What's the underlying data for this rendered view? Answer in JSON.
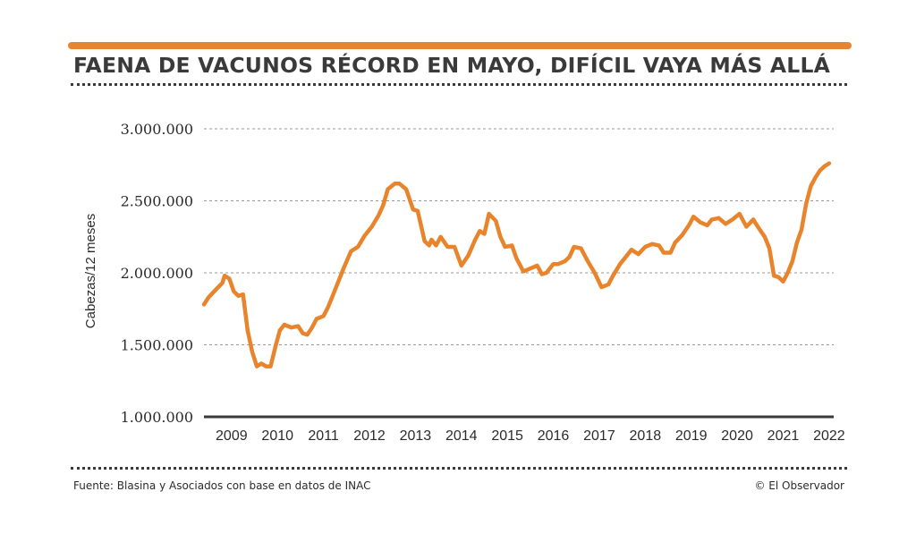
{
  "header": {
    "title": "FAENA DE VACUNOS RÉCORD EN MAYO, DIFÍCIL VAYA MÁS ALLÁ",
    "accent_color": "#e8842b"
  },
  "footer": {
    "source": "Fuente: Blasina y Asociados con base en datos de INAC",
    "credit": "© El Observador"
  },
  "chart_data": {
    "type": "line",
    "title": "FAENA DE VACUNOS RÉCORD EN MAYO, DIFÍCIL VAYA MÁS ALLÁ",
    "xlabel": "",
    "ylabel": "Cabezas/12 meses",
    "x_range": [
      2008.9,
      2022.6
    ],
    "ylim": [
      1000000,
      3000000
    ],
    "y_ticks": [
      1000000,
      1500000,
      2000000,
      2500000,
      3000000
    ],
    "y_tick_labels": [
      "1.000.000",
      "1.500.000",
      "2.000.000",
      "2.500.000",
      "3.000.000"
    ],
    "x_ticks": [
      2009.5,
      2010.5,
      2011.5,
      2012.5,
      2013.5,
      2014.5,
      2015.5,
      2016.5,
      2017.5,
      2018.5,
      2019.5,
      2020.5,
      2021.5,
      2022.5
    ],
    "x_tick_labels": [
      "2009",
      "2010",
      "2011",
      "2012",
      "2013",
      "2014",
      "2015",
      "2016",
      "2017",
      "2018",
      "2019",
      "2020",
      "2021",
      "2022"
    ],
    "grid": true,
    "line_color": "#e8842b",
    "series": [
      {
        "name": "",
        "x": [
          2008.9,
          2009.0,
          2009.15,
          2009.3,
          2009.35,
          2009.45,
          2009.55,
          2009.65,
          2009.75,
          2009.85,
          2009.95,
          2010.05,
          2010.15,
          2010.25,
          2010.35,
          2010.45,
          2010.55,
          2010.65,
          2010.8,
          2010.95,
          2011.05,
          2011.15,
          2011.25,
          2011.35,
          2011.5,
          2011.6,
          2011.8,
          2011.95,
          2012.1,
          2012.25,
          2012.4,
          2012.55,
          2012.7,
          2012.8,
          2012.9,
          2013.05,
          2013.15,
          2013.3,
          2013.45,
          2013.55,
          2013.6,
          2013.7,
          2013.8,
          2013.85,
          2013.95,
          2014.05,
          2014.2,
          2014.35,
          2014.5,
          2014.65,
          2014.8,
          2014.9,
          2015.0,
          2015.1,
          2015.25,
          2015.35,
          2015.45,
          2015.6,
          2015.7,
          2015.85,
          2016.0,
          2016.15,
          2016.25,
          2016.35,
          2016.5,
          2016.6,
          2016.75,
          2016.85,
          2016.95,
          2017.1,
          2017.25,
          2017.4,
          2017.55,
          2017.7,
          2017.8,
          2017.95,
          2018.1,
          2018.2,
          2018.35,
          2018.5,
          2018.65,
          2018.8,
          2018.9,
          2019.05,
          2019.15,
          2019.3,
          2019.45,
          2019.55,
          2019.7,
          2019.85,
          2019.95,
          2020.1,
          2020.25,
          2020.4,
          2020.55,
          2020.7,
          2020.85,
          2020.95,
          2021.1,
          2021.2,
          2021.3,
          2021.4,
          2021.5,
          2021.6,
          2021.7,
          2021.8,
          2021.9,
          2022.0,
          2022.1,
          2022.2,
          2022.3,
          2022.4,
          2022.5
        ],
        "y": [
          1780000,
          1830000,
          1880000,
          1930000,
          1980000,
          1960000,
          1870000,
          1840000,
          1850000,
          1600000,
          1450000,
          1350000,
          1370000,
          1350000,
          1350000,
          1480000,
          1600000,
          1640000,
          1620000,
          1630000,
          1580000,
          1570000,
          1620000,
          1680000,
          1700000,
          1760000,
          1920000,
          2040000,
          2150000,
          2180000,
          2260000,
          2320000,
          2400000,
          2470000,
          2580000,
          2620000,
          2620000,
          2580000,
          2440000,
          2430000,
          2360000,
          2220000,
          2190000,
          2230000,
          2190000,
          2250000,
          2180000,
          2180000,
          2050000,
          2120000,
          2230000,
          2290000,
          2270000,
          2410000,
          2360000,
          2250000,
          2180000,
          2190000,
          2100000,
          2010000,
          2030000,
          2050000,
          1990000,
          2000000,
          2060000,
          2060000,
          2080000,
          2110000,
          2180000,
          2170000,
          2080000,
          2000000,
          1900000,
          1920000,
          1980000,
          2060000,
          2120000,
          2160000,
          2130000,
          2180000,
          2200000,
          2190000,
          2140000,
          2140000,
          2210000,
          2260000,
          2330000,
          2390000,
          2350000,
          2330000,
          2370000,
          2380000,
          2340000,
          2370000,
          2410000,
          2320000,
          2370000,
          2320000,
          2250000,
          2170000,
          1980000,
          1970000,
          1940000,
          2000000,
          2080000,
          2210000,
          2300000,
          2480000,
          2600000,
          2660000,
          2710000,
          2740000,
          2760000
        ]
      }
    ]
  }
}
